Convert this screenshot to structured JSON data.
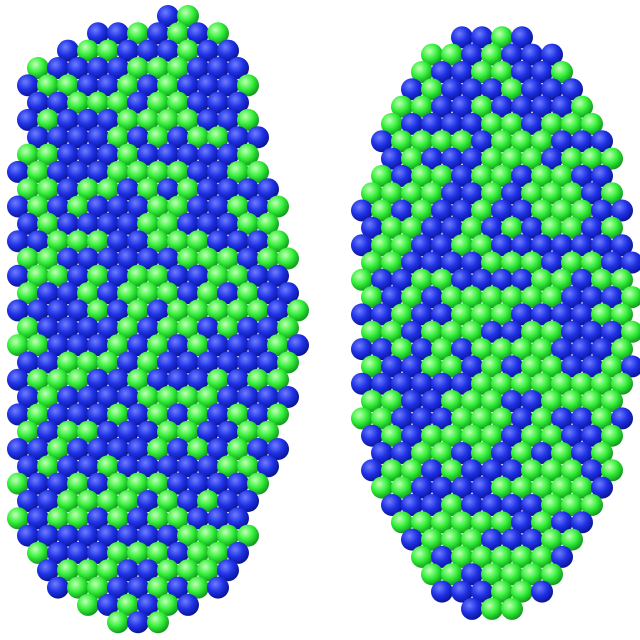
{
  "background": "#ffffff",
  "palette": {
    "blue": {
      "hi": "#6f7dff",
      "mid": "#1f32e6",
      "lo": "#071089"
    },
    "green": {
      "hi": "#c4ffb8",
      "mid": "#34f03a",
      "lo": "#0c8c19"
    }
  },
  "clusters": [
    {
      "name": "faceted-cluster",
      "blue_fraction": 0.55
    },
    {
      "name": "rounded-cluster",
      "blue_fraction": 0.45
    }
  ]
}
